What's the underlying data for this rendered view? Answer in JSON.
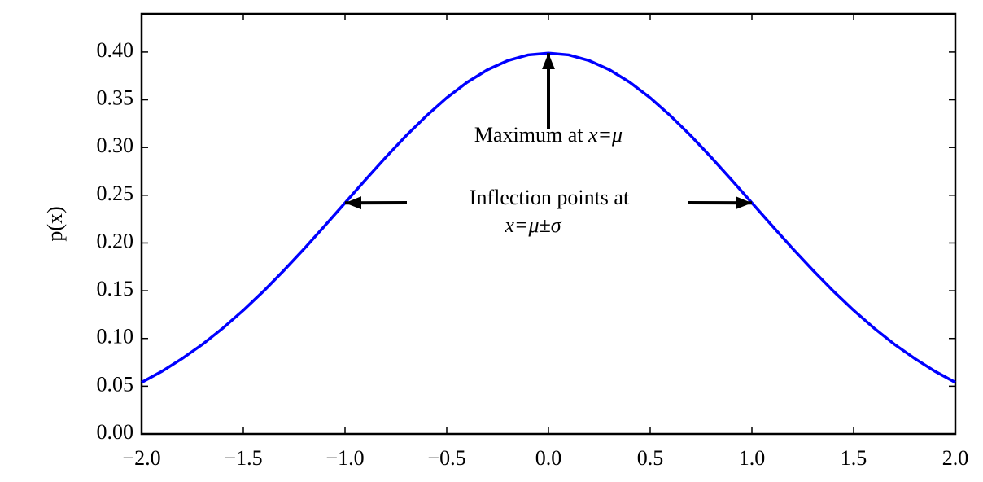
{
  "chart_data": {
    "type": "line",
    "ylabel": "p(x)",
    "x": [
      -2.0,
      -1.9,
      -1.8,
      -1.7,
      -1.6,
      -1.5,
      -1.4,
      -1.3,
      -1.2,
      -1.1,
      -1.0,
      -0.9,
      -0.8,
      -0.7,
      -0.6,
      -0.5,
      -0.4,
      -0.3,
      -0.2,
      -0.1,
      0.0,
      0.1,
      0.2,
      0.3,
      0.4,
      0.5,
      0.6,
      0.7,
      0.8,
      0.9,
      1.0,
      1.1,
      1.2,
      1.3,
      1.4,
      1.5,
      1.6,
      1.7,
      1.8,
      1.9,
      2.0
    ],
    "values": [
      0.054,
      0.0656,
      0.079,
      0.094,
      0.1109,
      0.1295,
      0.1497,
      0.1714,
      0.1942,
      0.2179,
      0.242,
      0.2661,
      0.2897,
      0.3123,
      0.3332,
      0.3521,
      0.3683,
      0.3814,
      0.391,
      0.397,
      0.3989,
      0.397,
      0.391,
      0.3814,
      0.3683,
      0.3521,
      0.3332,
      0.3123,
      0.2897,
      0.2661,
      0.242,
      0.2179,
      0.1942,
      0.1714,
      0.1497,
      0.1295,
      0.1109,
      0.094,
      0.079,
      0.0656,
      0.054
    ],
    "color": "#0000ff",
    "xlim": [
      -2,
      2
    ],
    "ylim": [
      0,
      0.44
    ],
    "xticks": [
      {
        "value": -2,
        "label": "−2.0"
      },
      {
        "value": -1.5,
        "label": "−1.5"
      },
      {
        "value": -1,
        "label": "−1.0"
      },
      {
        "value": -0.5,
        "label": "−0.5"
      },
      {
        "value": 0,
        "label": "0.0"
      },
      0.5,
      {
        "value": 1,
        "label": "1.0"
      },
      1.5,
      {
        "value": 2,
        "label": "2.0"
      }
    ],
    "yticks": [
      {
        "value": 0,
        "label": "0.00"
      },
      0.05,
      {
        "value": 0.1,
        "label": "0.10"
      },
      0.15,
      {
        "value": 0.2,
        "label": "0.20"
      },
      0.25,
      {
        "value": 0.3,
        "label": "0.30"
      },
      0.35,
      {
        "value": 0.4,
        "label": "0.40"
      }
    ],
    "annotations": [
      {
        "text": "Maximum at",
        "math": "x=μ",
        "points": [
          [
            0,
            0.3989
          ]
        ]
      },
      {
        "text": "Inflection points at",
        "math": "x=μ±σ",
        "points": [
          [
            -1,
            0.242
          ],
          [
            1,
            0.242
          ]
        ]
      }
    ]
  }
}
